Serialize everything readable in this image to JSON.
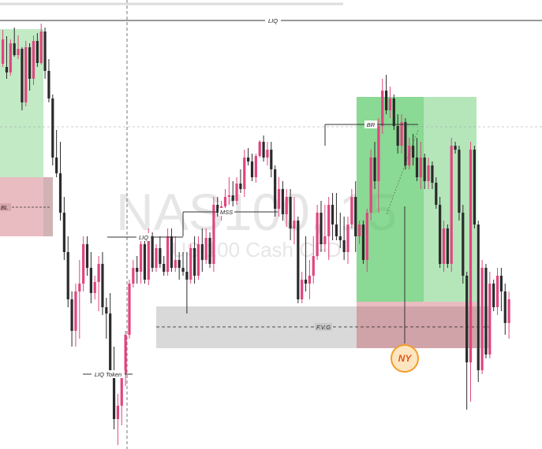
{
  "watermark": {
    "symbol": "NAS100, 15",
    "name": "US 100 Cash CFD"
  },
  "colors": {
    "bull": "#2b2b2b",
    "bear": "#e0457f",
    "green_zone": "#4cc45a",
    "red_zone": "#c0404c",
    "gray_zone": "#9a9a9a",
    "session_circle": "#f39c2a",
    "session_fill": "#fde6bf"
  },
  "chart_data": {
    "type": "candlestick",
    "annotations": {
      "liq_top": "LIQ",
      "bl": "BL",
      "mss": "MSS",
      "liq": "LIQ",
      "liq_token": "LIQ Token",
      "br": "BR",
      "fvg": "F.V.G",
      "session": "NY"
    },
    "zones": [
      "green-left",
      "red-left",
      "fvg",
      "green-right",
      "red-right"
    ],
    "candles": [
      [
        81,
        85,
        38,
        50
      ],
      [
        85,
        100,
        46,
        92
      ],
      [
        92,
        96,
        50,
        55
      ],
      [
        55,
        72,
        35,
        70
      ],
      [
        70,
        75,
        45,
        62
      ],
      [
        62,
        140,
        60,
        130
      ],
      [
        130,
        135,
        52,
        60
      ],
      [
        60,
        115,
        55,
        100
      ],
      [
        100,
        108,
        45,
        52
      ],
      [
        52,
        85,
        42,
        80
      ],
      [
        80,
        82,
        30,
        40
      ],
      [
        40,
        100,
        35,
        90
      ],
      [
        90,
        130,
        75,
        125
      ],
      [
        125,
        210,
        120,
        200
      ],
      [
        200,
        225,
        165,
        220
      ],
      [
        220,
        280,
        180,
        270
      ],
      [
        270,
        330,
        250,
        320
      ],
      [
        320,
        390,
        300,
        380
      ],
      [
        380,
        440,
        370,
        420
      ],
      [
        420,
        440,
        360,
        370
      ],
      [
        370,
        430,
        330,
        360
      ],
      [
        360,
        370,
        300,
        310
      ],
      [
        310,
        350,
        300,
        340
      ],
      [
        340,
        385,
        320,
        372
      ],
      [
        372,
        380,
        350,
        358
      ],
      [
        358,
        395,
        325,
        335
      ],
      [
        335,
        400,
        320,
        390
      ],
      [
        390,
        430,
        378,
        398
      ],
      [
        398,
        478,
        372,
        470
      ],
      [
        470,
        545,
        440,
        532
      ],
      [
        532,
        565,
        500,
        515
      ],
      [
        515,
        540,
        470,
        475
      ],
      [
        475,
        490,
        420,
        425
      ],
      [
        425,
        430,
        355,
        360
      ],
      [
        360,
        365,
        330,
        340
      ],
      [
        340,
        360,
        325,
        345
      ],
      [
        345,
        360,
        300,
        310
      ],
      [
        310,
        360,
        300,
        355
      ],
      [
        355,
        362,
        290,
        300
      ],
      [
        300,
        345,
        295,
        340
      ],
      [
        340,
        345,
        310,
        315
      ],
      [
        315,
        340,
        300,
        335
      ],
      [
        335,
        350,
        325,
        345
      ],
      [
        345,
        350,
        290,
        300
      ],
      [
        300,
        345,
        290,
        340
      ],
      [
        340,
        345,
        300,
        330
      ],
      [
        330,
        355,
        320,
        340
      ],
      [
        340,
        350,
        320,
        345
      ],
      [
        345,
        398,
        320,
        355
      ],
      [
        355,
        360,
        310,
        315
      ],
      [
        315,
        360,
        300,
        350
      ],
      [
        350,
        355,
        300,
        310
      ],
      [
        310,
        345,
        290,
        330
      ],
      [
        330,
        335,
        290,
        302
      ],
      [
        302,
        340,
        295,
        335
      ],
      [
        335,
        345,
        250,
        260
      ],
      [
        260,
        275,
        250,
        270
      ],
      [
        270,
        280,
        255,
        262
      ],
      [
        262,
        270,
        240,
        250
      ],
      [
        250,
        260,
        225,
        248
      ],
      [
        248,
        262,
        230,
        255
      ],
      [
        255,
        260,
        225,
        233
      ],
      [
        233,
        245,
        215,
        240
      ],
      [
        240,
        250,
        190,
        200
      ],
      [
        200,
        210,
        188,
        205
      ],
      [
        205,
        230,
        195,
        225
      ],
      [
        225,
        232,
        195,
        198
      ],
      [
        198,
        200,
        178,
        180
      ],
      [
        180,
        205,
        172,
        200
      ],
      [
        200,
        210,
        180,
        190
      ],
      [
        190,
        225,
        180,
        215
      ],
      [
        215,
        275,
        210,
        265
      ],
      [
        265,
        275,
        225,
        240
      ],
      [
        240,
        280,
        230,
        272
      ],
      [
        272,
        288,
        240,
        250
      ],
      [
        250,
        305,
        240,
        290
      ],
      [
        290,
        310,
        250,
        280
      ],
      [
        280,
        385,
        275,
        380
      ],
      [
        380,
        385,
        345,
        355
      ],
      [
        355,
        370,
        300,
        360
      ],
      [
        360,
        380,
        330,
        350
      ],
      [
        350,
        360,
        300,
        325
      ],
      [
        325,
        330,
        260,
        270
      ],
      [
        270,
        320,
        255,
        310
      ],
      [
        310,
        320,
        260,
        300
      ],
      [
        300,
        330,
        250,
        260
      ],
      [
        260,
        305,
        245,
        285
      ],
      [
        285,
        305,
        245,
        300
      ],
      [
        300,
        315,
        270,
        305
      ],
      [
        305,
        330,
        275,
        320
      ],
      [
        320,
        335,
        275,
        285
      ],
      [
        285,
        290,
        240,
        250
      ],
      [
        250,
        320,
        230,
        300
      ],
      [
        300,
        310,
        280,
        285
      ],
      [
        285,
        335,
        280,
        330
      ],
      [
        330,
        345,
        265,
        270
      ],
      [
        270,
        280,
        190,
        200
      ],
      [
        200,
        240,
        180,
        230
      ],
      [
        230,
        270,
        150,
        160
      ],
      [
        160,
        170,
        100,
        115
      ],
      [
        115,
        145,
        95,
        140
      ],
      [
        140,
        150,
        110,
        125
      ],
      [
        125,
        165,
        120,
        160
      ],
      [
        160,
        195,
        145,
        185
      ],
      [
        185,
        195,
        145,
        155
      ],
      [
        155,
        215,
        150,
        210
      ],
      [
        210,
        215,
        175,
        185
      ],
      [
        185,
        210,
        170,
        200
      ],
      [
        200,
        230,
        175,
        225
      ],
      [
        225,
        240,
        180,
        200
      ],
      [
        200,
        240,
        195,
        230
      ],
      [
        230,
        240,
        200,
        210
      ],
      [
        210,
        240,
        205,
        232
      ],
      [
        232,
        265,
        225,
        260
      ],
      [
        260,
        340,
        250,
        335
      ],
      [
        335,
        345,
        280,
        290
      ],
      [
        290,
        340,
        285,
        335
      ],
      [
        335,
        345,
        175,
        185
      ],
      [
        185,
        195,
        180,
        190
      ],
      [
        190,
        280,
        185,
        270
      ],
      [
        270,
        360,
        260,
        350
      ],
      [
        350,
        520,
        345,
        460
      ],
      [
        460,
        510,
        180,
        190
      ],
      [
        190,
        290,
        185,
        285
      ],
      [
        285,
        485,
        280,
        470
      ],
      [
        470,
        475,
        330,
        340
      ],
      [
        340,
        455,
        335,
        450
      ],
      [
        450,
        455,
        345,
        360
      ],
      [
        360,
        395,
        355,
        390
      ],
      [
        390,
        400,
        340,
        350
      ],
      [
        350,
        395,
        340,
        370
      ],
      [
        370,
        425,
        360,
        410
      ],
      [
        410,
        430,
        370,
        380
      ]
    ],
    "y_axis": {
      "direction": "price-inverted",
      "note": "no price scale is printed"
    }
  }
}
